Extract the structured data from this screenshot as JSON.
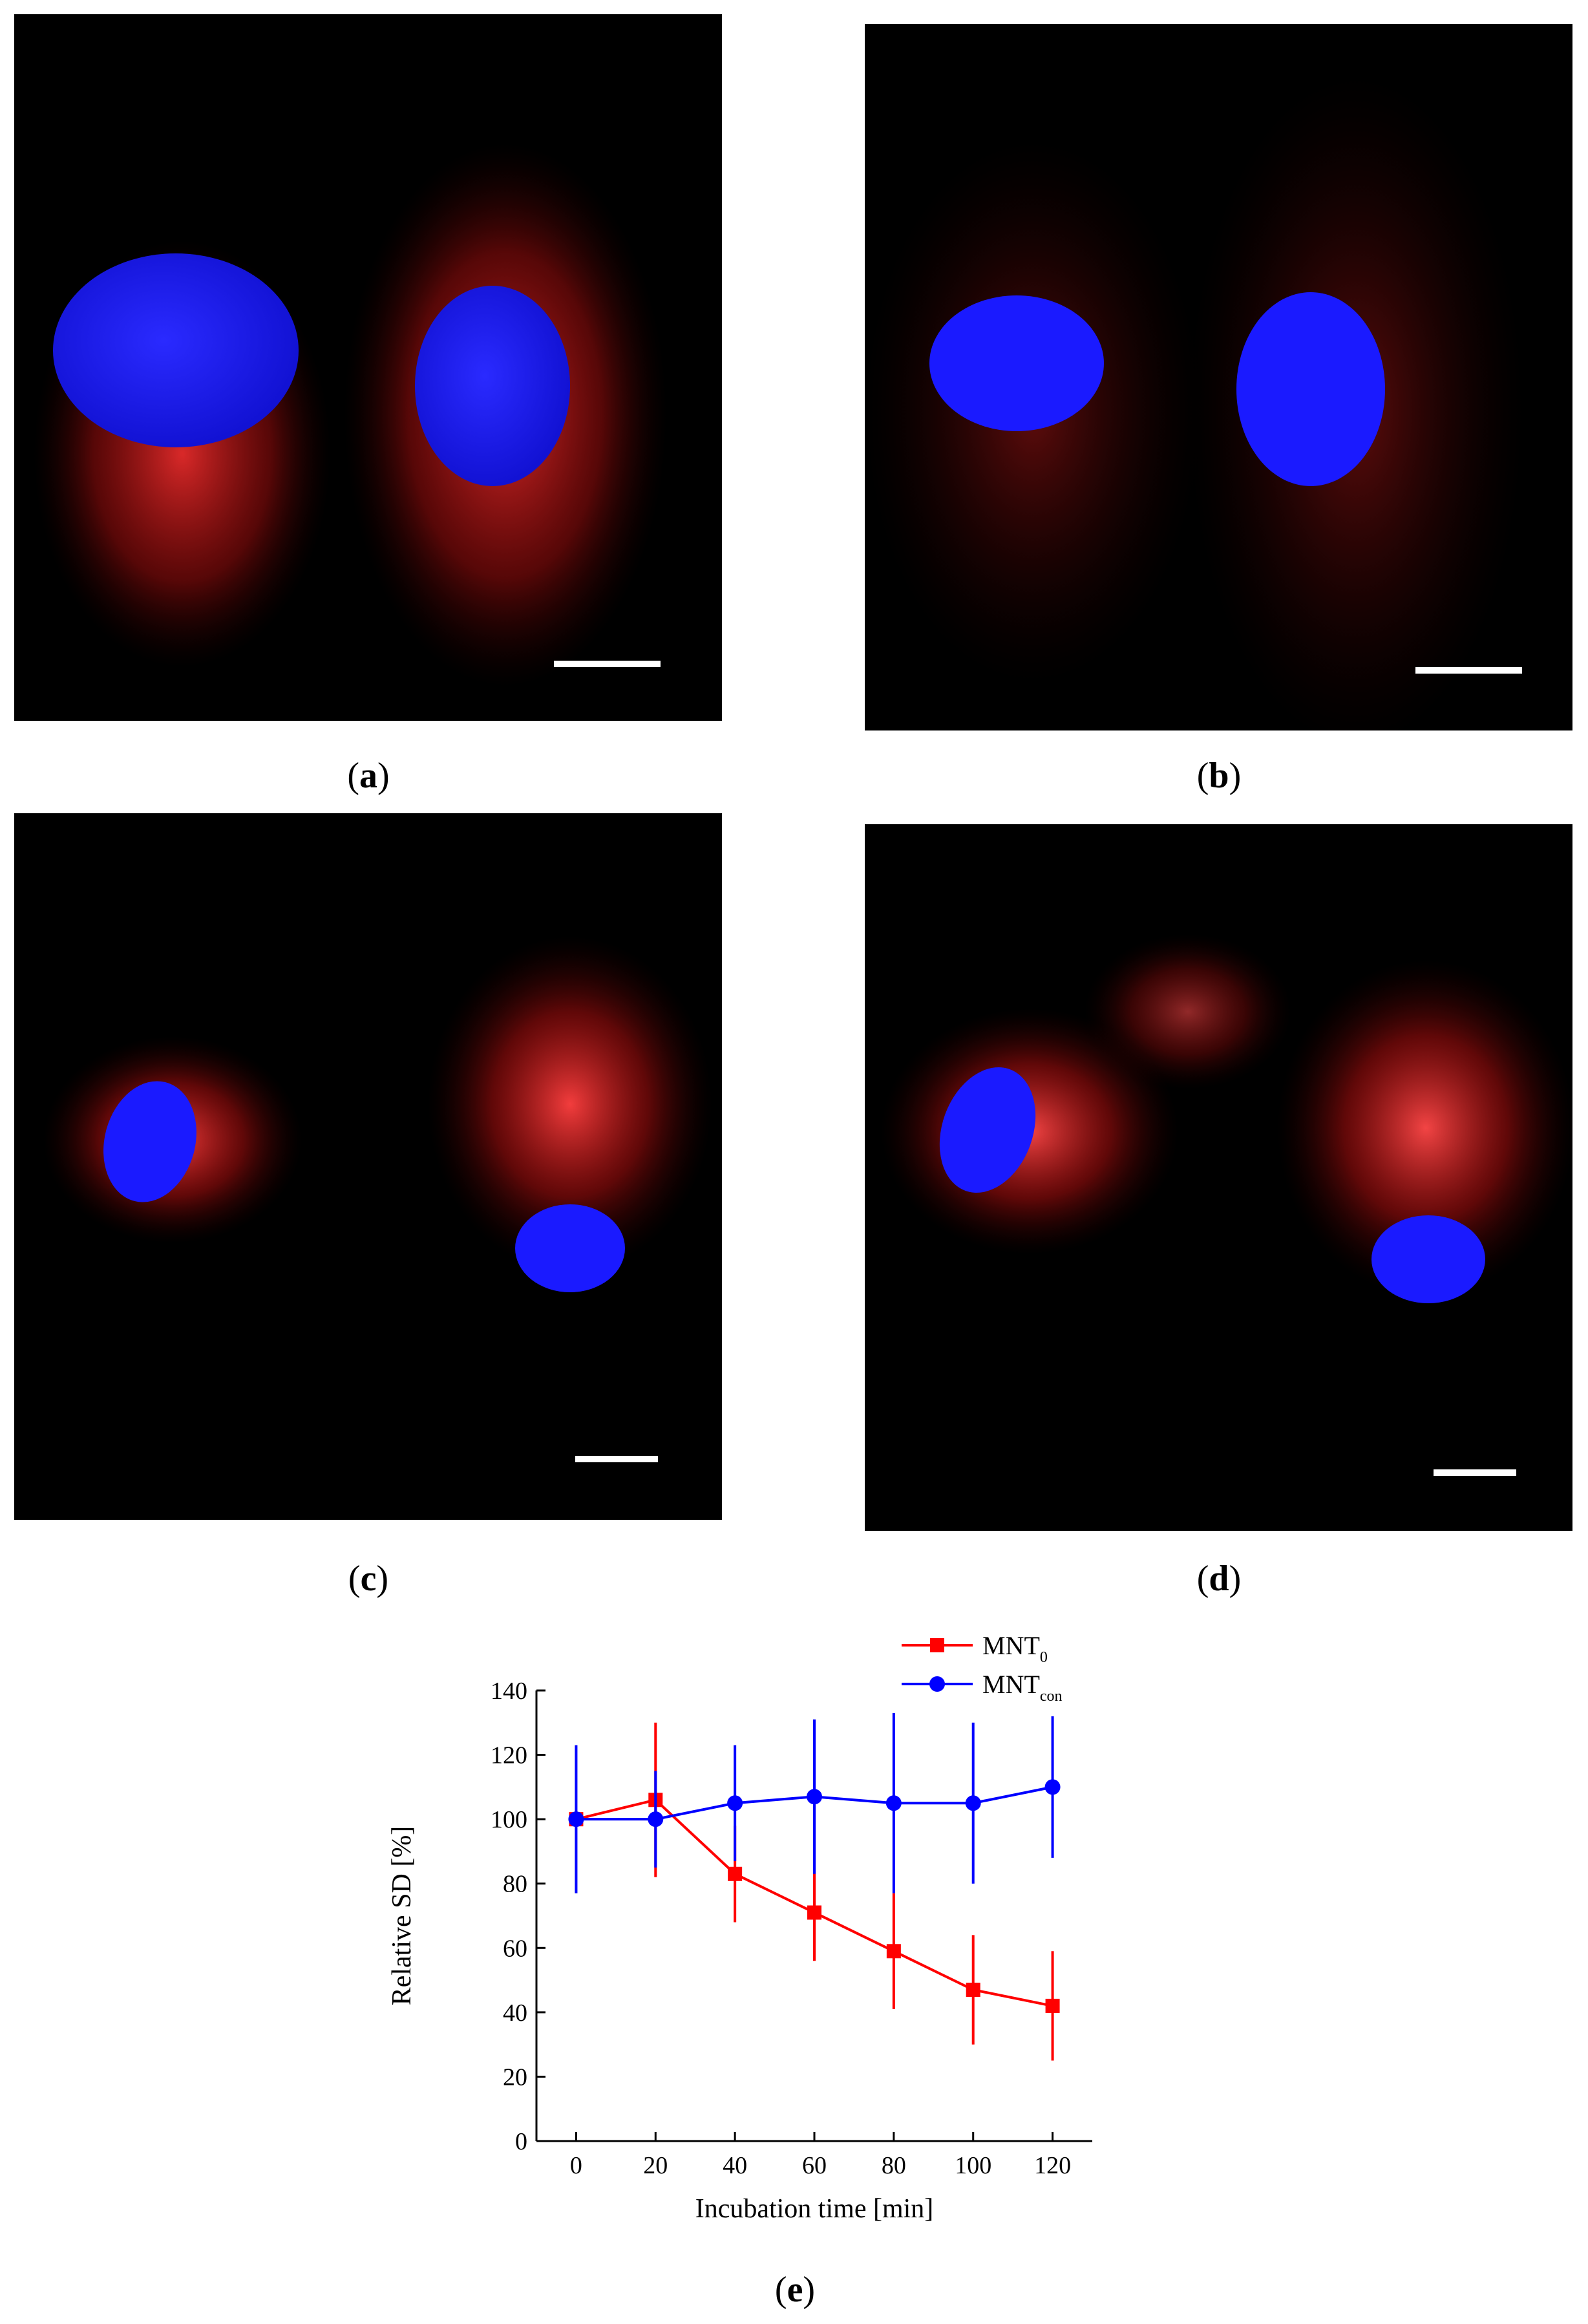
{
  "panels": [
    {
      "id": "a",
      "caption_open": "(",
      "caption_letter": "a",
      "caption_close": ")"
    },
    {
      "id": "b",
      "caption_open": "(",
      "caption_letter": "b",
      "caption_close": ")"
    },
    {
      "id": "c",
      "caption_open": "(",
      "caption_letter": "c",
      "caption_close": ")"
    },
    {
      "id": "d",
      "caption_open": "(",
      "caption_letter": "d",
      "caption_close": ")"
    }
  ],
  "panel_e": {
    "caption_open": "(",
    "caption_letter": "e",
    "caption_close": ")"
  },
  "colors": {
    "nucleus": "#1a1aff",
    "stain": "#ff2a2a",
    "background": "#000000",
    "scale_bar": "#ffffff"
  },
  "chart_data": {
    "type": "line",
    "title": "",
    "xlabel": "Incubation time [min]",
    "ylabel": "Relative SD [%]",
    "x": [
      0,
      20,
      40,
      60,
      80,
      100,
      120
    ],
    "xlim": [
      -10,
      130
    ],
    "ylim": [
      0,
      140
    ],
    "xticks": [
      0,
      20,
      40,
      60,
      80,
      100,
      120
    ],
    "yticks": [
      0,
      20,
      40,
      60,
      80,
      100,
      120,
      140
    ],
    "legend_position": "top-right",
    "series": [
      {
        "name": "MNT",
        "name_sub": "0",
        "marker": "square",
        "color": "#ff0000",
        "values": [
          100,
          106,
          83,
          71,
          59,
          47,
          42
        ],
        "errors": [
          0,
          24,
          15,
          15,
          18,
          17,
          17
        ]
      },
      {
        "name": "MNT",
        "name_sub": "con",
        "marker": "circle",
        "color": "#0000ff",
        "values": [
          100,
          100,
          105,
          107,
          105,
          105,
          110
        ],
        "errors": [
          23,
          15,
          18,
          24,
          28,
          25,
          22
        ]
      }
    ]
  }
}
